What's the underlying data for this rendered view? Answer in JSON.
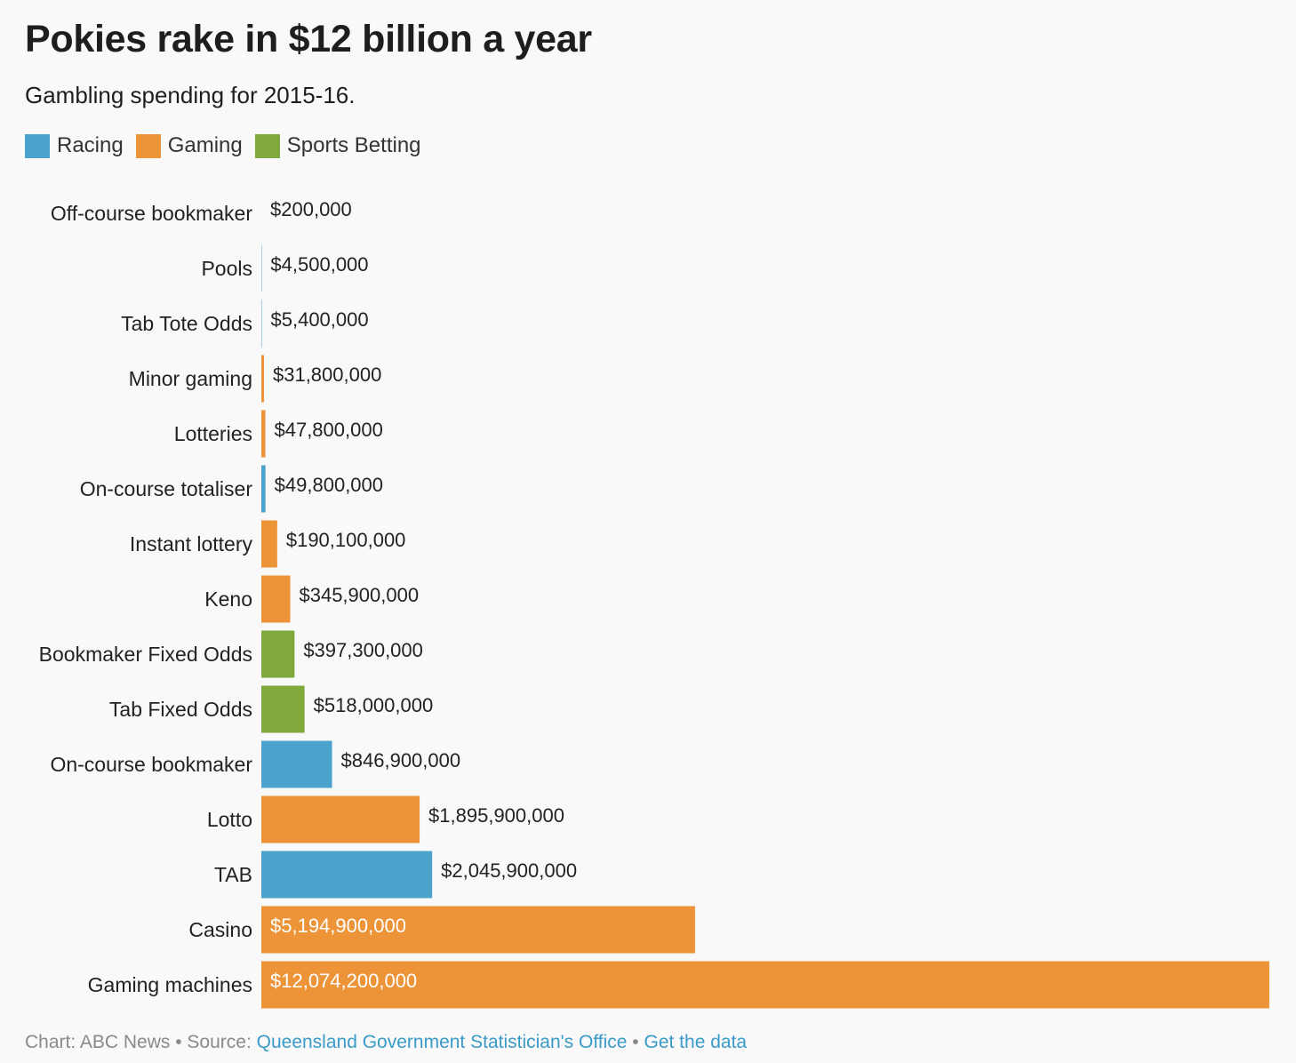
{
  "header": {
    "title": "Pokies rake in $12 billion a year",
    "subtitle": "Gambling spending for 2015-16."
  },
  "legend": [
    {
      "label": "Racing",
      "color": "#4aa3cb"
    },
    {
      "label": "Gaming",
      "color": "#ed9338"
    },
    {
      "label": "Sports Betting",
      "color": "#7fa93b"
    }
  ],
  "chart_data": {
    "type": "bar",
    "orientation": "horizontal",
    "title": "Pokies rake in $12 billion a year",
    "subtitle": "Gambling spending for 2015-16.",
    "xlabel": "",
    "ylabel": "",
    "legend_position": "top-left",
    "grid": false,
    "categories": [
      "Off-course bookmaker",
      "Pools",
      "Tab Tote Odds",
      "Minor gaming",
      "Lotteries",
      "On-course totaliser",
      "Instant lottery",
      "Keno",
      "Bookmaker Fixed Odds",
      "Tab Fixed Odds",
      "On-course bookmaker",
      "Lotto",
      "TAB",
      "Casino",
      "Gaming machines"
    ],
    "values": [
      200000,
      4500000,
      5400000,
      31800000,
      47800000,
      49800000,
      190100000,
      345900000,
      397300000,
      518000000,
      846900000,
      1895900000,
      2045900000,
      5194900000,
      12074200000
    ],
    "value_labels": [
      "$200,000",
      "$4,500,000",
      "$5,400,000",
      "$31,800,000",
      "$47,800,000",
      "$49,800,000",
      "$190,100,000",
      "$345,900,000",
      "$397,300,000",
      "$518,000,000",
      "$846,900,000",
      "$1,895,900,000",
      "$2,045,900,000",
      "$5,194,900,000",
      "$12,074,200,000"
    ],
    "groups": [
      "Racing",
      "Racing",
      "Racing",
      "Gaming",
      "Gaming",
      "Racing",
      "Gaming",
      "Gaming",
      "Sports Betting",
      "Sports Betting",
      "Racing",
      "Gaming",
      "Racing",
      "Gaming",
      "Gaming"
    ],
    "xlim": [
      0,
      12074200000
    ]
  },
  "footer": {
    "prefix": "Chart: ABC News • Source: ",
    "source_link": "Queensland Government Statistician's Office",
    "separator": " • ",
    "data_link": "Get the data"
  }
}
